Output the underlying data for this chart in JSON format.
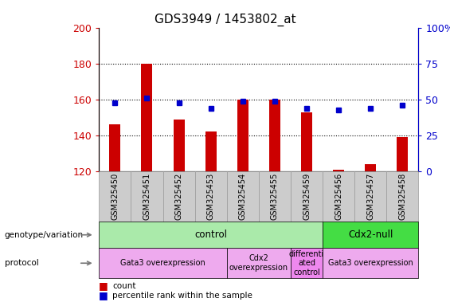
{
  "title": "GDS3949 / 1453802_at",
  "samples": [
    "GSM325450",
    "GSM325451",
    "GSM325452",
    "GSM325453",
    "GSM325454",
    "GSM325455",
    "GSM325459",
    "GSM325456",
    "GSM325457",
    "GSM325458"
  ],
  "counts": [
    146,
    180,
    149,
    142,
    160,
    160,
    153,
    121,
    124,
    139
  ],
  "percentile_ranks_left": [
    158,
    161,
    158,
    155,
    159,
    159,
    155,
    154,
    155,
    157
  ],
  "ylim_left": [
    120,
    200
  ],
  "ylim_right": [
    0,
    100
  ],
  "yticks_left": [
    120,
    140,
    160,
    180,
    200
  ],
  "yticks_right": [
    0,
    25,
    50,
    75,
    100
  ],
  "bar_color": "#cc0000",
  "dot_color": "#0000cc",
  "genotype_groups": [
    {
      "label": "control",
      "start": 0,
      "end": 7,
      "color": "#aaeaaa"
    },
    {
      "label": "Cdx2-null",
      "start": 7,
      "end": 10,
      "color": "#44dd44"
    }
  ],
  "protocol_groups": [
    {
      "label": "Gata3 overexpression",
      "start": 0,
      "end": 4,
      "color": "#eeaaee"
    },
    {
      "label": "Cdx2\noverexpression",
      "start": 4,
      "end": 6,
      "color": "#eeaaee"
    },
    {
      "label": "differenti\nated\ncontrol",
      "start": 6,
      "end": 7,
      "color": "#ee88ee"
    },
    {
      "label": "Gata3 overexpression",
      "start": 7,
      "end": 10,
      "color": "#eeaaee"
    }
  ],
  "tick_label_bg": "#cccccc",
  "tick_label_edge": "#999999"
}
